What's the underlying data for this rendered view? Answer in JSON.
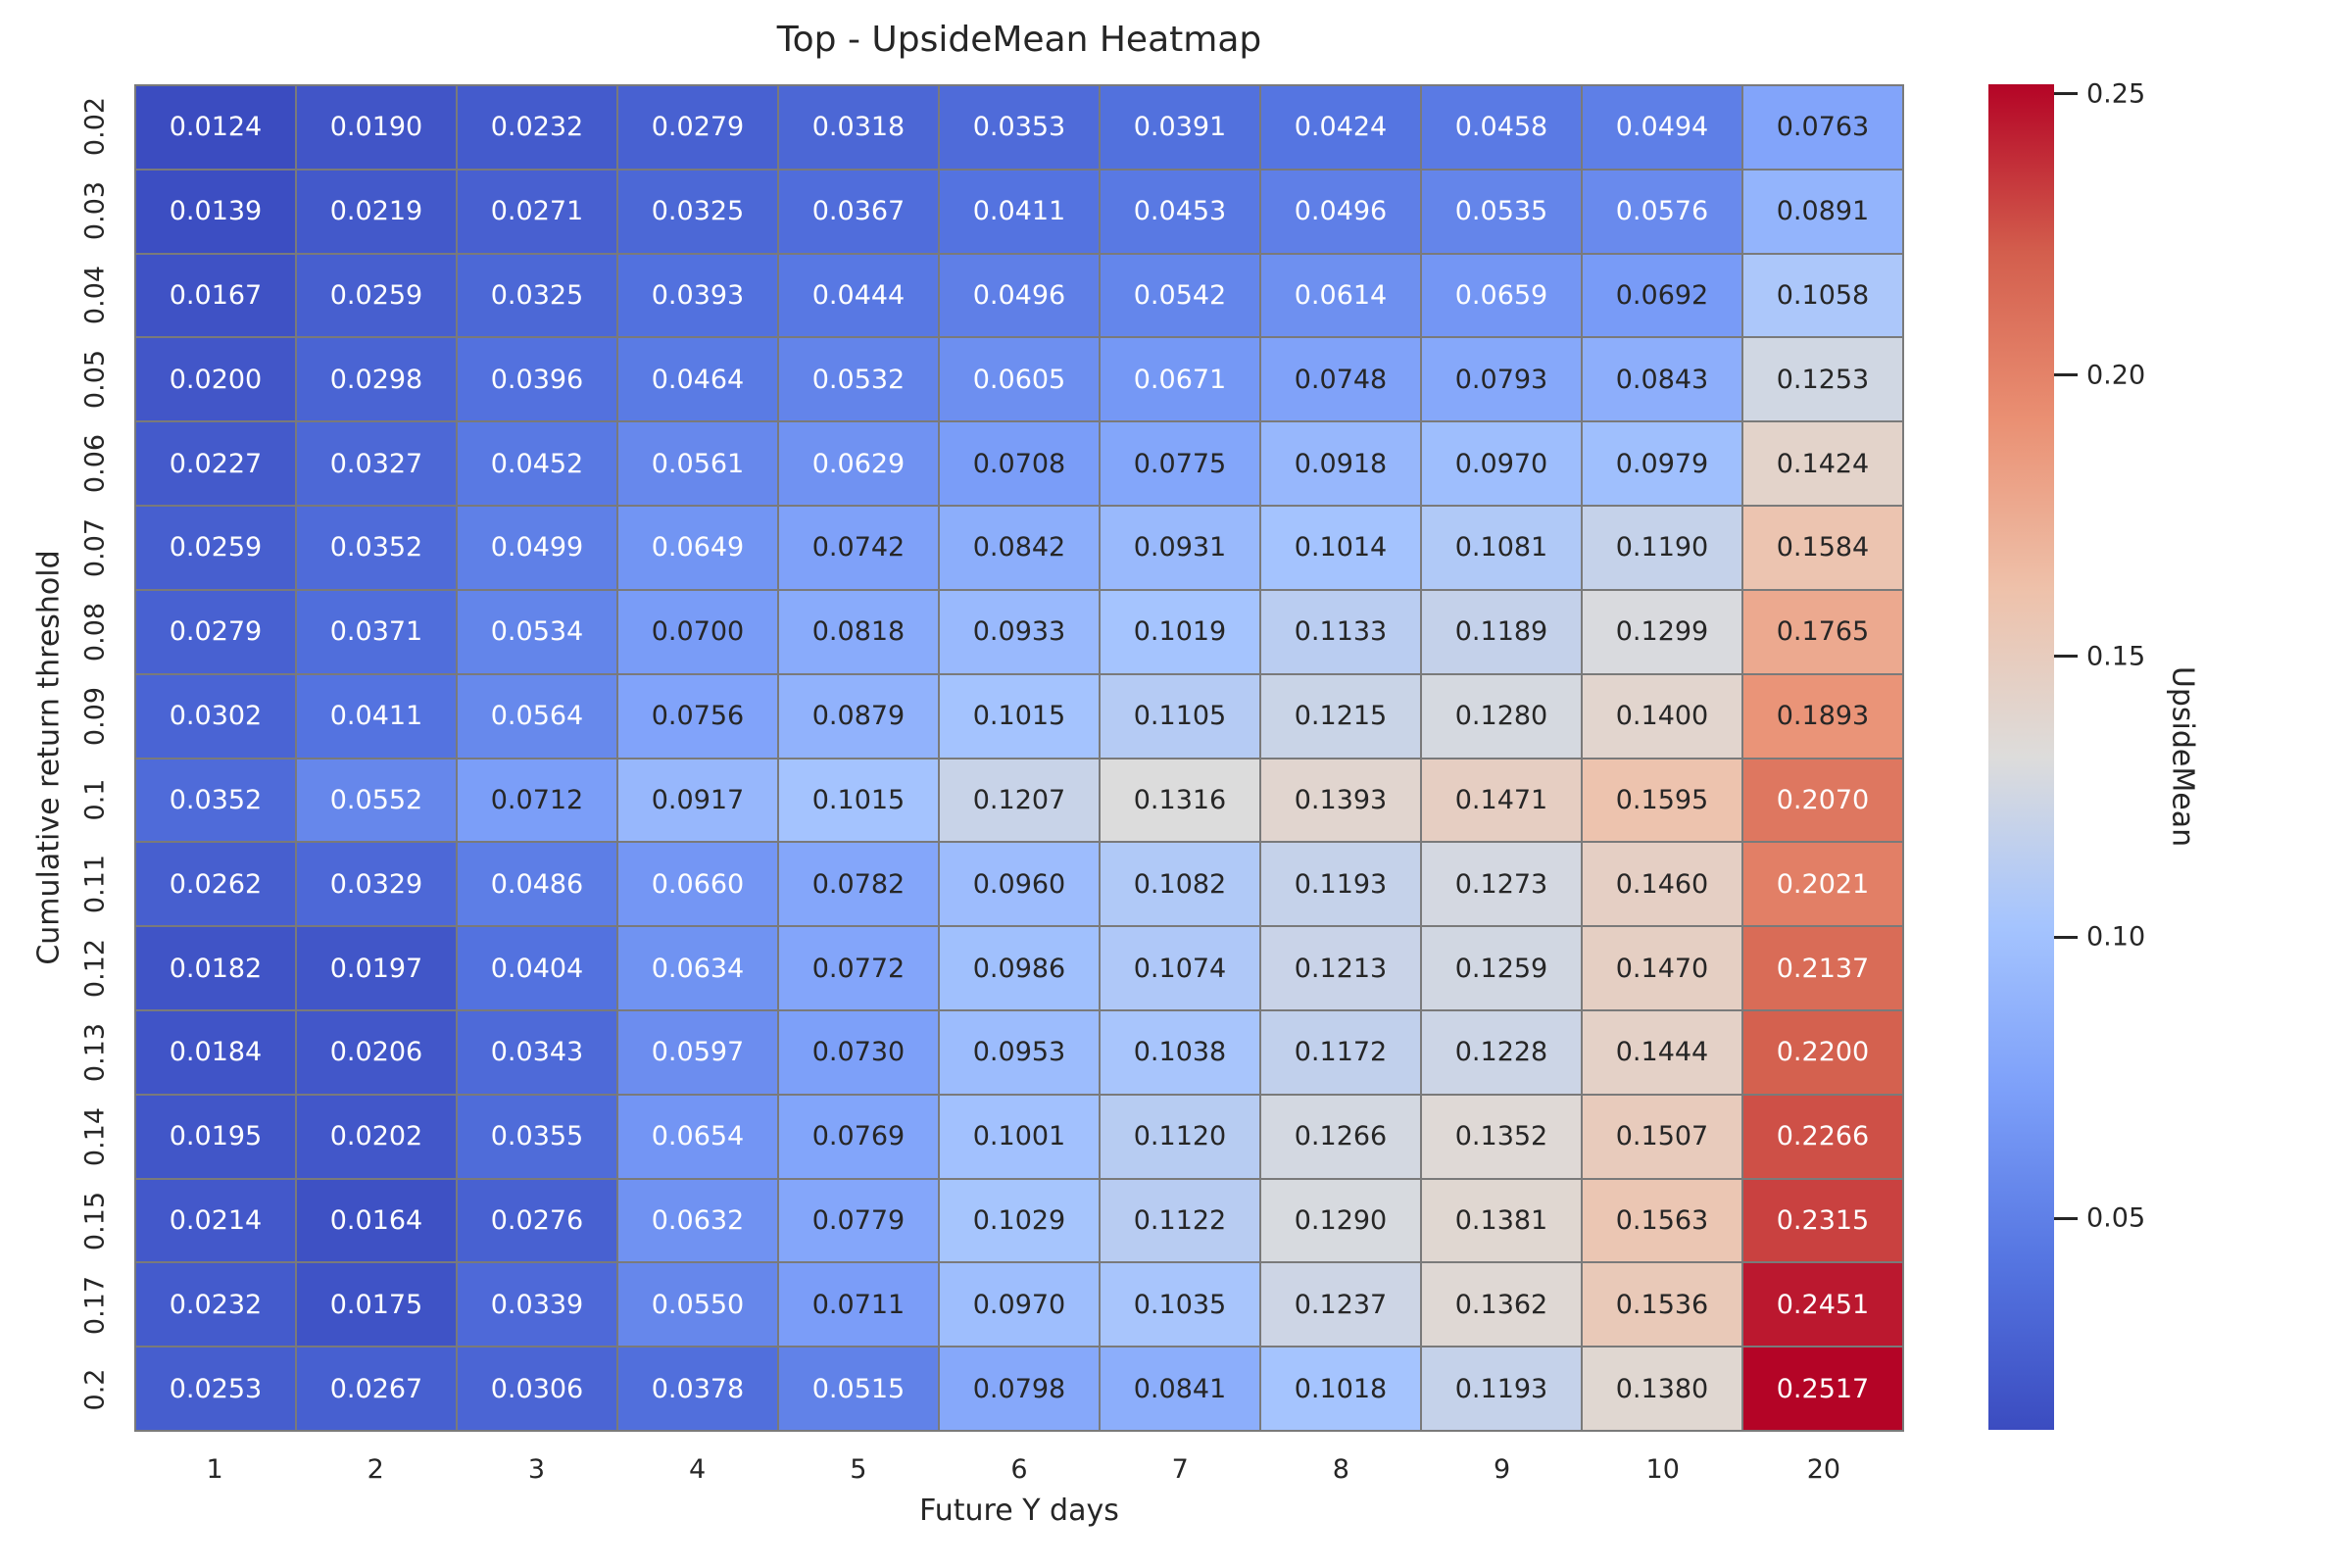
{
  "figure": {
    "background": "#ffffff"
  },
  "chart_data": {
    "type": "heatmap",
    "title": "Top - UpsideMean Heatmap",
    "xlabel": "Future Y days",
    "ylabel": "Cumulative return threshold",
    "x_categories": [
      "1",
      "2",
      "3",
      "4",
      "5",
      "6",
      "7",
      "8",
      "9",
      "10",
      "20"
    ],
    "y_categories": [
      "0.02",
      "0.03",
      "0.04",
      "0.05",
      "0.06",
      "0.07",
      "0.08",
      "0.09",
      "0.1",
      "0.11",
      "0.12",
      "0.13",
      "0.14",
      "0.15",
      "0.17",
      "0.2"
    ],
    "values": [
      [
        0.0124,
        0.019,
        0.0232,
        0.0279,
        0.0318,
        0.0353,
        0.0391,
        0.0424,
        0.0458,
        0.0494,
        0.0763
      ],
      [
        0.0139,
        0.0219,
        0.0271,
        0.0325,
        0.0367,
        0.0411,
        0.0453,
        0.0496,
        0.0535,
        0.0576,
        0.0891
      ],
      [
        0.0167,
        0.0259,
        0.0325,
        0.0393,
        0.0444,
        0.0496,
        0.0542,
        0.0614,
        0.0659,
        0.0692,
        0.1058
      ],
      [
        0.02,
        0.0298,
        0.0396,
        0.0464,
        0.0532,
        0.0605,
        0.0671,
        0.0748,
        0.0793,
        0.0843,
        0.1253
      ],
      [
        0.0227,
        0.0327,
        0.0452,
        0.0561,
        0.0629,
        0.0708,
        0.0775,
        0.0918,
        0.097,
        0.0979,
        0.1424
      ],
      [
        0.0259,
        0.0352,
        0.0499,
        0.0649,
        0.0742,
        0.0842,
        0.0931,
        0.1014,
        0.1081,
        0.119,
        0.1584
      ],
      [
        0.0279,
        0.0371,
        0.0534,
        0.07,
        0.0818,
        0.0933,
        0.1019,
        0.1133,
        0.1189,
        0.1299,
        0.1765
      ],
      [
        0.0302,
        0.0411,
        0.0564,
        0.0756,
        0.0879,
        0.1015,
        0.1105,
        0.1215,
        0.128,
        0.14,
        0.1893
      ],
      [
        0.0352,
        0.0552,
        0.0712,
        0.0917,
        0.1015,
        0.1207,
        0.1316,
        0.1393,
        0.1471,
        0.1595,
        0.207
      ],
      [
        0.0262,
        0.0329,
        0.0486,
        0.066,
        0.0782,
        0.096,
        0.1082,
        0.1193,
        0.1273,
        0.146,
        0.2021
      ],
      [
        0.0182,
        0.0197,
        0.0404,
        0.0634,
        0.0772,
        0.0986,
        0.1074,
        0.1213,
        0.1259,
        0.147,
        0.2137
      ],
      [
        0.0184,
        0.0206,
        0.0343,
        0.0597,
        0.073,
        0.0953,
        0.1038,
        0.1172,
        0.1228,
        0.1444,
        0.22
      ],
      [
        0.0195,
        0.0202,
        0.0355,
        0.0654,
        0.0769,
        0.1001,
        0.112,
        0.1266,
        0.1352,
        0.1507,
        0.2266
      ],
      [
        0.0214,
        0.0164,
        0.0276,
        0.0632,
        0.0779,
        0.1029,
        0.1122,
        0.129,
        0.1381,
        0.1563,
        0.2315
      ],
      [
        0.0232,
        0.0175,
        0.0339,
        0.055,
        0.0711,
        0.097,
        0.1035,
        0.1237,
        0.1362,
        0.1536,
        0.2451
      ],
      [
        0.0253,
        0.0267,
        0.0306,
        0.0378,
        0.0515,
        0.0798,
        0.0841,
        0.1018,
        0.1193,
        0.138,
        0.2517
      ]
    ],
    "value_format_decimals": 4,
    "vmin": 0.0124,
    "vmax": 0.2517,
    "grid_on": true,
    "grid_line_color": "#7a7a7a",
    "annotation_colors": {
      "light": "#ffffff",
      "dark": "#262626"
    },
    "luminance_threshold": 0.332,
    "colormap": {
      "name": "coolwarm",
      "stops": [
        [
          0.0,
          59,
          76,
          192
        ],
        [
          0.125,
          85,
          117,
          225
        ],
        [
          0.25,
          124,
          159,
          249
        ],
        [
          0.375,
          165,
          196,
          254
        ],
        [
          0.5,
          221,
          220,
          219
        ],
        [
          0.625,
          238,
          193,
          170
        ],
        [
          0.75,
          234,
          144,
          115
        ],
        [
          0.875,
          211,
          94,
          77
        ],
        [
          1.0,
          180,
          4,
          38
        ]
      ]
    },
    "colorbar": {
      "label": "UpsideMean",
      "position": "right",
      "ticks": [
        {
          "value": 0.05,
          "label": "0.05"
        },
        {
          "value": 0.1,
          "label": "0.10"
        },
        {
          "value": 0.15,
          "label": "0.15"
        },
        {
          "value": 0.2,
          "label": "0.20"
        },
        {
          "value": 0.25,
          "label": "0.25"
        }
      ]
    }
  }
}
